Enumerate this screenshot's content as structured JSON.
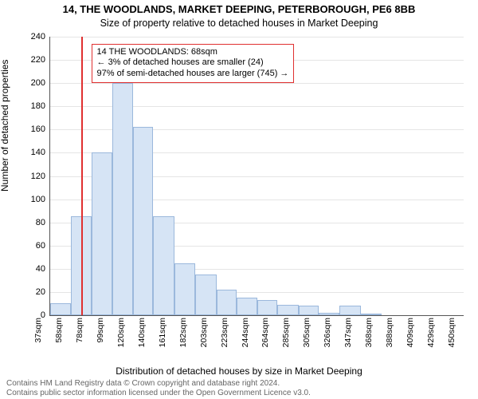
{
  "title": "14, THE WOODLANDS, MARKET DEEPING, PETERBOROUGH, PE6 8BB",
  "subtitle": "Size of property relative to detached houses in Market Deeping",
  "ylabel": "Number of detached properties",
  "xlabel": "Distribution of detached houses by size in Market Deeping",
  "credit_line1": "Contains HM Land Registry data © Crown copyright and database right 2024.",
  "credit_line2": "Contains public sector information licensed under the Open Government Licence v3.0.",
  "chart": {
    "type": "histogram",
    "background_color": "#ffffff",
    "grid_color": "#e5e5e5",
    "axis_color": "#555555",
    "bar_fill": "#d6e4f5",
    "bar_stroke": "#9bb8dc",
    "marker_color": "#e03030",
    "ylim": [
      0,
      240
    ],
    "ytick_step": 20,
    "xtick_labels": [
      "37sqm",
      "58sqm",
      "78sqm",
      "99sqm",
      "120sqm",
      "140sqm",
      "161sqm",
      "182sqm",
      "203sqm",
      "223sqm",
      "244sqm",
      "264sqm",
      "285sqm",
      "305sqm",
      "326sqm",
      "347sqm",
      "368sqm",
      "388sqm",
      "409sqm",
      "429sqm",
      "450sqm"
    ],
    "xlim": [
      37,
      450
    ],
    "bars": [
      {
        "x0": 37,
        "x1": 58,
        "y": 10
      },
      {
        "x0": 58,
        "x1": 78,
        "y": 85
      },
      {
        "x0": 78,
        "x1": 99,
        "y": 140
      },
      {
        "x0": 99,
        "x1": 120,
        "y": 200
      },
      {
        "x0": 120,
        "x1": 140,
        "y": 162
      },
      {
        "x0": 140,
        "x1": 161,
        "y": 85
      },
      {
        "x0": 161,
        "x1": 182,
        "y": 45
      },
      {
        "x0": 182,
        "x1": 203,
        "y": 35
      },
      {
        "x0": 203,
        "x1": 223,
        "y": 22
      },
      {
        "x0": 223,
        "x1": 244,
        "y": 15
      },
      {
        "x0": 244,
        "x1": 264,
        "y": 13
      },
      {
        "x0": 264,
        "x1": 285,
        "y": 9
      },
      {
        "x0": 285,
        "x1": 305,
        "y": 8
      },
      {
        "x0": 305,
        "x1": 326,
        "y": 2
      },
      {
        "x0": 326,
        "x1": 347,
        "y": 8
      },
      {
        "x0": 347,
        "x1": 368,
        "y": 1
      },
      {
        "x0": 368,
        "x1": 388,
        "y": 0
      },
      {
        "x0": 388,
        "x1": 409,
        "y": 0
      },
      {
        "x0": 409,
        "x1": 429,
        "y": 0
      },
      {
        "x0": 429,
        "x1": 450,
        "y": 0
      }
    ],
    "marker_x": 68,
    "annotation": {
      "line1": "14 THE WOODLANDS: 68sqm",
      "line2": "← 3% of detached houses are smaller (24)",
      "line3": "97% of semi-detached houses are larger (745) →",
      "box_left_x": 78,
      "box_top_y": 234
    },
    "title_fontsize": 13,
    "subtitle_fontsize": 12.5,
    "label_fontsize": 12,
    "tick_fontsize": 11
  }
}
